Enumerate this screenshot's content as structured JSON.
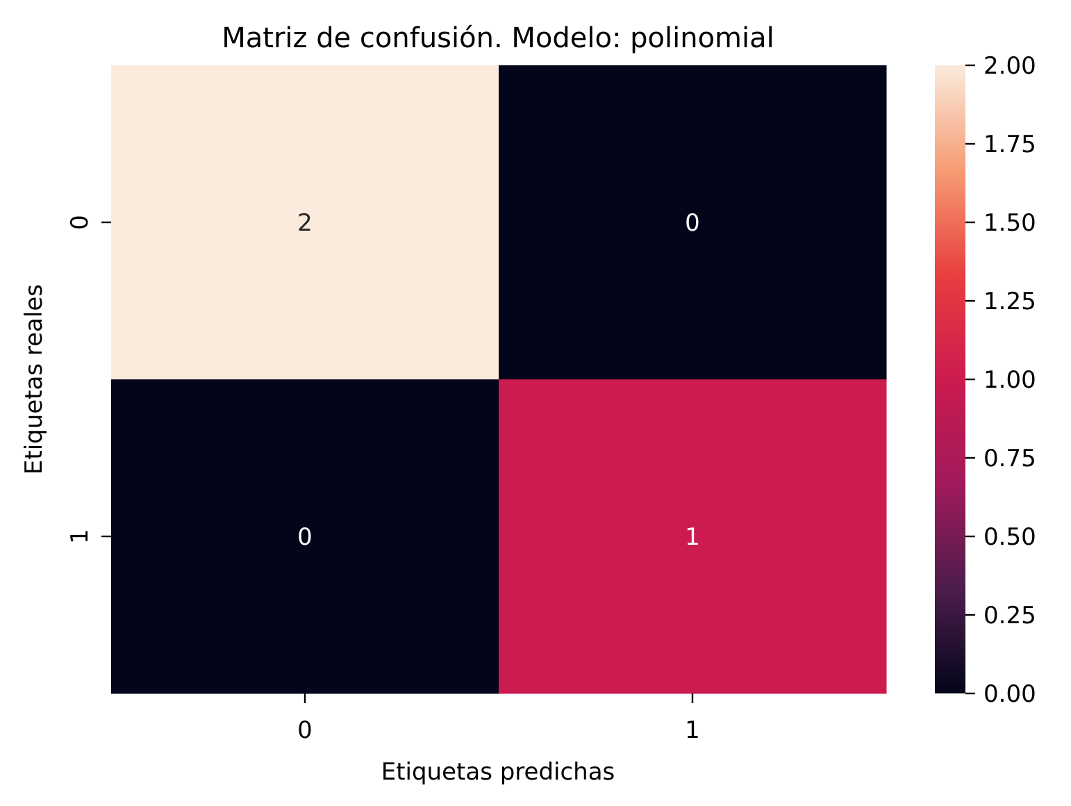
{
  "chart_data": {
    "type": "heatmap",
    "title": "Matriz de confusión. Modelo: polinomial",
    "xlabel": "Etiquetas predichas",
    "ylabel": "Etiquetas reales",
    "x_categories": [
      "0",
      "1"
    ],
    "y_categories": [
      "0",
      "1"
    ],
    "values": [
      [
        2,
        0
      ],
      [
        0,
        1
      ]
    ],
    "value_labels": [
      [
        "2",
        "0"
      ],
      [
        "0",
        "1"
      ]
    ],
    "colorbar": {
      "min": 0,
      "max": 2,
      "ticks": [
        0.0,
        0.25,
        0.5,
        0.75,
        1.0,
        1.25,
        1.5,
        1.75,
        2.0
      ],
      "tick_labels": [
        "0.00",
        "0.25",
        "0.50",
        "0.75",
        "1.00",
        "1.25",
        "1.50",
        "1.75",
        "2.00"
      ],
      "colormap": "rocket",
      "colormap_stops": [
        "#03051a",
        "#4c1d4b",
        "#a11a5b",
        "#cb1b4f",
        "#e83f3f",
        "#f69c73",
        "#faebdd"
      ]
    },
    "annotation_colors": {
      "on_light": "#262626",
      "on_dark": "#ffffff"
    }
  }
}
